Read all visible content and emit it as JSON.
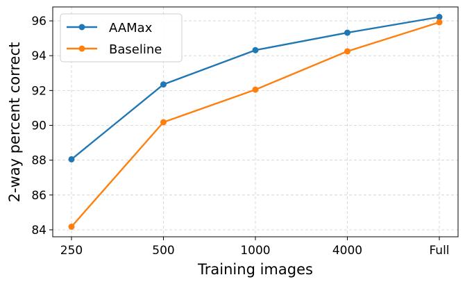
{
  "chart_data": {
    "type": "line",
    "categories": [
      "250",
      "500",
      "1000",
      "4000",
      "Full"
    ],
    "series": [
      {
        "name": "AAMax",
        "color": "#1f77b4",
        "values": [
          88.05,
          92.35,
          94.32,
          95.32,
          96.22
        ]
      },
      {
        "name": "Baseline",
        "color": "#ff7f0e",
        "values": [
          84.18,
          90.18,
          92.05,
          94.25,
          95.92
        ]
      }
    ],
    "xlabel": "Training images",
    "ylabel": "2-way percent correct",
    "ylim": [
      83.6,
      96.8
    ],
    "yticks": [
      "84",
      "86",
      "88",
      "90",
      "92",
      "94",
      "96"
    ],
    "grid": true,
    "legend_position": "top-left"
  }
}
